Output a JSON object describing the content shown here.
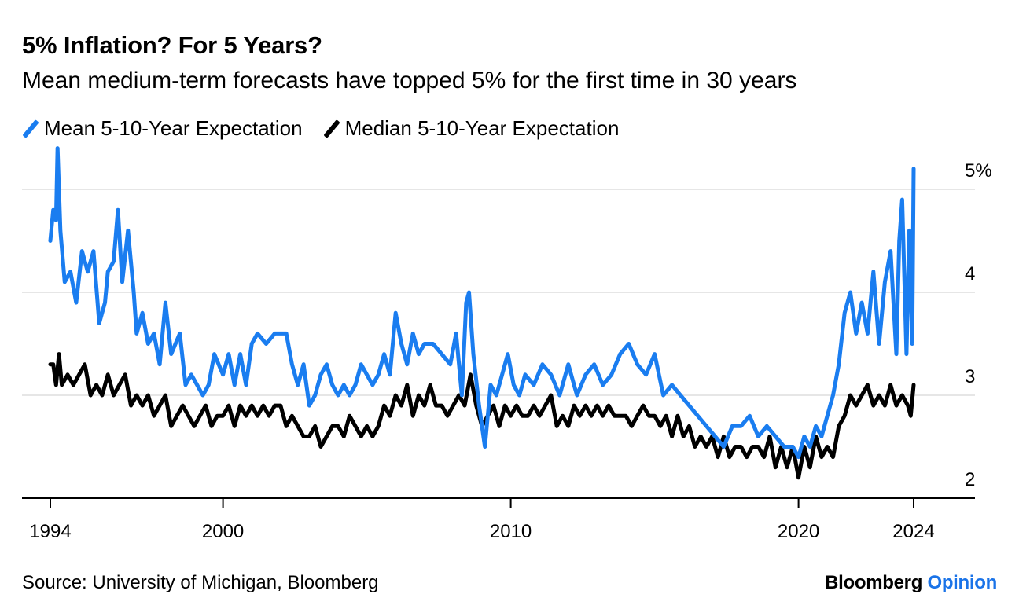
{
  "title": "5% Inflation? For 5 Years?",
  "subtitle": "Mean medium-term forecasts have topped 5% for the first time in 30 years",
  "source": "Source: University of Michigan, Bloomberg",
  "brand": {
    "name": "Bloomberg",
    "section": "Opinion"
  },
  "chart_data": {
    "type": "line",
    "title": "5% Inflation? For 5 Years?",
    "subtitle": "Mean medium-term forecasts have topped 5% for the first time in 30 years",
    "xlabel": "",
    "ylabel": "",
    "x_range": [
      1994.0,
      2024.0
    ],
    "ylim": [
      2,
      5
    ],
    "x_ticks": [
      "1994",
      "2000",
      "2010",
      "2020",
      "2024"
    ],
    "x_tick_values": [
      1994,
      2000,
      2010,
      2020,
      2024
    ],
    "y_ticks": [
      "2",
      "3",
      "4",
      "5%"
    ],
    "y_tick_values": [
      2,
      3,
      4,
      5
    ],
    "grid": true,
    "legend_position": "top-left",
    "series": [
      {
        "name": "Mean 5-10-Year Expectation",
        "color": "#1a7df0",
        "points": [
          [
            1994.0,
            4.5
          ],
          [
            1994.1,
            4.8
          ],
          [
            1994.2,
            4.7
          ],
          [
            1994.25,
            5.4
          ],
          [
            1994.35,
            4.6
          ],
          [
            1994.5,
            4.1
          ],
          [
            1994.7,
            4.2
          ],
          [
            1994.9,
            3.9
          ],
          [
            1995.1,
            4.4
          ],
          [
            1995.3,
            4.2
          ],
          [
            1995.5,
            4.4
          ],
          [
            1995.7,
            3.7
          ],
          [
            1995.9,
            3.9
          ],
          [
            1996.0,
            4.2
          ],
          [
            1996.2,
            4.3
          ],
          [
            1996.35,
            4.8
          ],
          [
            1996.5,
            4.1
          ],
          [
            1996.7,
            4.6
          ],
          [
            1996.9,
            4.0
          ],
          [
            1997.0,
            3.6
          ],
          [
            1997.2,
            3.8
          ],
          [
            1997.4,
            3.5
          ],
          [
            1997.6,
            3.6
          ],
          [
            1997.8,
            3.3
          ],
          [
            1998.0,
            3.9
          ],
          [
            1998.2,
            3.4
          ],
          [
            1998.5,
            3.6
          ],
          [
            1998.7,
            3.1
          ],
          [
            1998.9,
            3.2
          ],
          [
            1999.1,
            3.1
          ],
          [
            1999.3,
            3.0
          ],
          [
            1999.5,
            3.1
          ],
          [
            1999.7,
            3.4
          ],
          [
            2000.0,
            3.2
          ],
          [
            2000.2,
            3.4
          ],
          [
            2000.4,
            3.1
          ],
          [
            2000.6,
            3.4
          ],
          [
            2000.8,
            3.1
          ],
          [
            2001.0,
            3.5
          ],
          [
            2001.2,
            3.6
          ],
          [
            2001.5,
            3.5
          ],
          [
            2001.8,
            3.6
          ],
          [
            2002.0,
            3.6
          ],
          [
            2002.2,
            3.6
          ],
          [
            2002.4,
            3.3
          ],
          [
            2002.6,
            3.1
          ],
          [
            2002.8,
            3.3
          ],
          [
            2003.0,
            2.9
          ],
          [
            2003.2,
            3.0
          ],
          [
            2003.4,
            3.2
          ],
          [
            2003.6,
            3.3
          ],
          [
            2003.8,
            3.1
          ],
          [
            2004.0,
            3.0
          ],
          [
            2004.2,
            3.1
          ],
          [
            2004.4,
            3.0
          ],
          [
            2004.6,
            3.1
          ],
          [
            2004.8,
            3.3
          ],
          [
            2005.0,
            3.2
          ],
          [
            2005.2,
            3.1
          ],
          [
            2005.4,
            3.2
          ],
          [
            2005.6,
            3.4
          ],
          [
            2005.8,
            3.2
          ],
          [
            2006.0,
            3.8
          ],
          [
            2006.2,
            3.5
          ],
          [
            2006.4,
            3.3
          ],
          [
            2006.6,
            3.6
          ],
          [
            2006.8,
            3.4
          ],
          [
            2007.0,
            3.5
          ],
          [
            2007.3,
            3.5
          ],
          [
            2007.6,
            3.4
          ],
          [
            2007.9,
            3.3
          ],
          [
            2008.1,
            3.6
          ],
          [
            2008.3,
            3.0
          ],
          [
            2008.45,
            3.9
          ],
          [
            2008.55,
            4.0
          ],
          [
            2008.7,
            3.4
          ],
          [
            2008.9,
            2.9
          ],
          [
            2009.1,
            2.5
          ],
          [
            2009.3,
            3.1
          ],
          [
            2009.5,
            3.0
          ],
          [
            2009.7,
            3.2
          ],
          [
            2009.9,
            3.4
          ],
          [
            2010.1,
            3.1
          ],
          [
            2010.3,
            3.0
          ],
          [
            2010.5,
            3.2
          ],
          [
            2010.8,
            3.1
          ],
          [
            2011.1,
            3.3
          ],
          [
            2011.4,
            3.2
          ],
          [
            2011.7,
            3.0
          ],
          [
            2012.0,
            3.3
          ],
          [
            2012.3,
            3.0
          ],
          [
            2012.6,
            3.2
          ],
          [
            2012.9,
            3.3
          ],
          [
            2013.2,
            3.1
          ],
          [
            2013.5,
            3.2
          ],
          [
            2013.8,
            3.4
          ],
          [
            2014.1,
            3.5
          ],
          [
            2014.4,
            3.3
          ],
          [
            2014.7,
            3.2
          ],
          [
            2015.0,
            3.4
          ],
          [
            2015.3,
            3.0
          ],
          [
            2015.6,
            3.1
          ],
          [
            2015.9,
            3.0
          ],
          [
            2016.2,
            2.9
          ],
          [
            2016.5,
            2.8
          ],
          [
            2016.8,
            2.7
          ],
          [
            2017.1,
            2.6
          ],
          [
            2017.4,
            2.5
          ],
          [
            2017.7,
            2.7
          ],
          [
            2018.0,
            2.7
          ],
          [
            2018.3,
            2.8
          ],
          [
            2018.6,
            2.6
          ],
          [
            2018.9,
            2.7
          ],
          [
            2019.2,
            2.6
          ],
          [
            2019.5,
            2.5
          ],
          [
            2019.8,
            2.5
          ],
          [
            2020.0,
            2.4
          ],
          [
            2020.2,
            2.6
          ],
          [
            2020.4,
            2.5
          ],
          [
            2020.6,
            2.7
          ],
          [
            2020.8,
            2.6
          ],
          [
            2021.0,
            2.8
          ],
          [
            2021.2,
            3.0
          ],
          [
            2021.4,
            3.3
          ],
          [
            2021.6,
            3.8
          ],
          [
            2021.8,
            4.0
          ],
          [
            2022.0,
            3.6
          ],
          [
            2022.2,
            3.9
          ],
          [
            2022.4,
            3.6
          ],
          [
            2022.6,
            4.2
          ],
          [
            2022.8,
            3.5
          ],
          [
            2023.0,
            4.1
          ],
          [
            2023.2,
            4.4
          ],
          [
            2023.4,
            3.4
          ],
          [
            2023.5,
            4.5
          ],
          [
            2023.6,
            4.9
          ],
          [
            2023.75,
            3.4
          ],
          [
            2023.85,
            4.6
          ],
          [
            2023.95,
            3.5
          ],
          [
            2024.0,
            5.2
          ]
        ]
      },
      {
        "name": "Median 5-10-Year Expectation",
        "color": "#000000",
        "points": [
          [
            1994.0,
            3.3
          ],
          [
            1994.1,
            3.3
          ],
          [
            1994.2,
            3.1
          ],
          [
            1994.3,
            3.4
          ],
          [
            1994.4,
            3.1
          ],
          [
            1994.6,
            3.2
          ],
          [
            1994.8,
            3.1
          ],
          [
            1995.0,
            3.2
          ],
          [
            1995.2,
            3.3
          ],
          [
            1995.4,
            3.0
          ],
          [
            1995.6,
            3.1
          ],
          [
            1995.8,
            3.0
          ],
          [
            1996.0,
            3.2
          ],
          [
            1996.2,
            3.0
          ],
          [
            1996.4,
            3.1
          ],
          [
            1996.6,
            3.2
          ],
          [
            1996.8,
            2.9
          ],
          [
            1997.0,
            3.0
          ],
          [
            1997.2,
            2.9
          ],
          [
            1997.4,
            3.0
          ],
          [
            1997.6,
            2.8
          ],
          [
            1997.8,
            2.9
          ],
          [
            1998.0,
            3.0
          ],
          [
            1998.2,
            2.7
          ],
          [
            1998.4,
            2.8
          ],
          [
            1998.6,
            2.9
          ],
          [
            1998.8,
            2.8
          ],
          [
            1999.0,
            2.7
          ],
          [
            1999.2,
            2.8
          ],
          [
            1999.4,
            2.9
          ],
          [
            1999.6,
            2.7
          ],
          [
            1999.8,
            2.8
          ],
          [
            2000.0,
            2.8
          ],
          [
            2000.2,
            2.9
          ],
          [
            2000.4,
            2.7
          ],
          [
            2000.6,
            2.9
          ],
          [
            2000.8,
            2.8
          ],
          [
            2001.0,
            2.9
          ],
          [
            2001.2,
            2.8
          ],
          [
            2001.4,
            2.9
          ],
          [
            2001.6,
            2.8
          ],
          [
            2001.8,
            2.9
          ],
          [
            2002.0,
            2.9
          ],
          [
            2002.2,
            2.7
          ],
          [
            2002.4,
            2.8
          ],
          [
            2002.6,
            2.7
          ],
          [
            2002.8,
            2.6
          ],
          [
            2003.0,
            2.6
          ],
          [
            2003.2,
            2.7
          ],
          [
            2003.4,
            2.5
          ],
          [
            2003.6,
            2.6
          ],
          [
            2003.8,
            2.7
          ],
          [
            2004.0,
            2.7
          ],
          [
            2004.2,
            2.6
          ],
          [
            2004.4,
            2.8
          ],
          [
            2004.6,
            2.7
          ],
          [
            2004.8,
            2.6
          ],
          [
            2005.0,
            2.7
          ],
          [
            2005.2,
            2.6
          ],
          [
            2005.4,
            2.7
          ],
          [
            2005.6,
            2.9
          ],
          [
            2005.8,
            2.8
          ],
          [
            2006.0,
            3.0
          ],
          [
            2006.2,
            2.9
          ],
          [
            2006.4,
            3.1
          ],
          [
            2006.6,
            2.8
          ],
          [
            2006.8,
            3.0
          ],
          [
            2007.0,
            2.9
          ],
          [
            2007.2,
            3.1
          ],
          [
            2007.4,
            2.9
          ],
          [
            2007.6,
            2.9
          ],
          [
            2007.8,
            2.8
          ],
          [
            2008.0,
            2.9
          ],
          [
            2008.2,
            3.0
          ],
          [
            2008.4,
            2.9
          ],
          [
            2008.6,
            3.2
          ],
          [
            2008.8,
            2.9
          ],
          [
            2009.0,
            2.7
          ],
          [
            2009.2,
            2.8
          ],
          [
            2009.4,
            2.9
          ],
          [
            2009.6,
            2.7
          ],
          [
            2009.8,
            2.9
          ],
          [
            2010.0,
            2.8
          ],
          [
            2010.2,
            2.9
          ],
          [
            2010.4,
            2.8
          ],
          [
            2010.6,
            2.8
          ],
          [
            2010.8,
            2.9
          ],
          [
            2011.0,
            2.8
          ],
          [
            2011.2,
            2.9
          ],
          [
            2011.4,
            3.0
          ],
          [
            2011.6,
            2.7
          ],
          [
            2011.8,
            2.8
          ],
          [
            2012.0,
            2.7
          ],
          [
            2012.2,
            2.9
          ],
          [
            2012.4,
            2.8
          ],
          [
            2012.6,
            2.9
          ],
          [
            2012.8,
            2.8
          ],
          [
            2013.0,
            2.9
          ],
          [
            2013.2,
            2.8
          ],
          [
            2013.4,
            2.9
          ],
          [
            2013.6,
            2.8
          ],
          [
            2013.8,
            2.8
          ],
          [
            2014.0,
            2.8
          ],
          [
            2014.2,
            2.7
          ],
          [
            2014.4,
            2.8
          ],
          [
            2014.6,
            2.9
          ],
          [
            2014.8,
            2.8
          ],
          [
            2015.0,
            2.8
          ],
          [
            2015.2,
            2.7
          ],
          [
            2015.4,
            2.8
          ],
          [
            2015.6,
            2.6
          ],
          [
            2015.8,
            2.8
          ],
          [
            2016.0,
            2.6
          ],
          [
            2016.2,
            2.7
          ],
          [
            2016.4,
            2.5
          ],
          [
            2016.6,
            2.6
          ],
          [
            2016.8,
            2.5
          ],
          [
            2017.0,
            2.6
          ],
          [
            2017.2,
            2.4
          ],
          [
            2017.4,
            2.6
          ],
          [
            2017.6,
            2.4
          ],
          [
            2017.8,
            2.5
          ],
          [
            2018.0,
            2.5
          ],
          [
            2018.2,
            2.4
          ],
          [
            2018.4,
            2.5
          ],
          [
            2018.6,
            2.5
          ],
          [
            2018.8,
            2.4
          ],
          [
            2019.0,
            2.6
          ],
          [
            2019.2,
            2.3
          ],
          [
            2019.4,
            2.5
          ],
          [
            2019.6,
            2.3
          ],
          [
            2019.8,
            2.5
          ],
          [
            2020.0,
            2.2
          ],
          [
            2020.2,
            2.5
          ],
          [
            2020.4,
            2.3
          ],
          [
            2020.6,
            2.6
          ],
          [
            2020.8,
            2.4
          ],
          [
            2021.0,
            2.5
          ],
          [
            2021.2,
            2.4
          ],
          [
            2021.4,
            2.7
          ],
          [
            2021.6,
            2.8
          ],
          [
            2021.8,
            3.0
          ],
          [
            2022.0,
            2.9
          ],
          [
            2022.2,
            3.0
          ],
          [
            2022.4,
            3.1
          ],
          [
            2022.6,
            2.9
          ],
          [
            2022.8,
            3.0
          ],
          [
            2023.0,
            2.9
          ],
          [
            2023.2,
            3.1
          ],
          [
            2023.4,
            2.9
          ],
          [
            2023.6,
            3.0
          ],
          [
            2023.8,
            2.9
          ],
          [
            2023.9,
            2.8
          ],
          [
            2024.0,
            3.1
          ]
        ]
      }
    ]
  }
}
